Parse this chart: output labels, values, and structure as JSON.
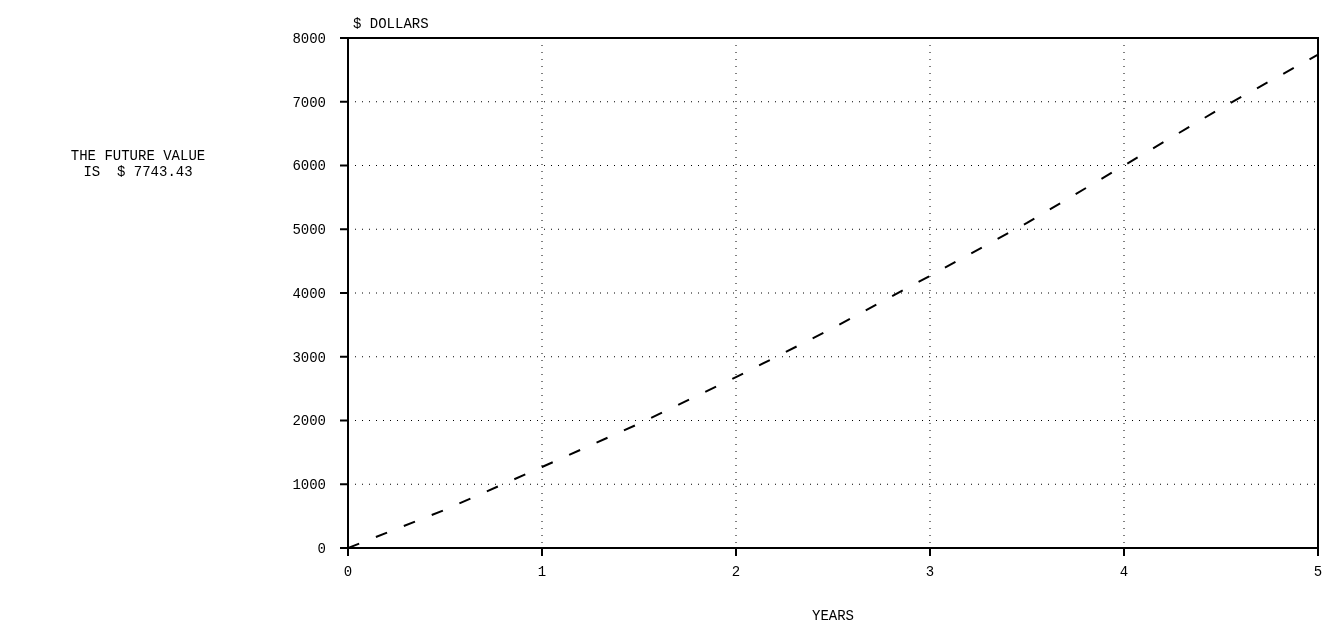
{
  "chart_data": {
    "type": "line",
    "xlabel": "YEARS",
    "ylabel": "$ DOLLARS",
    "annotations": [
      "THE FUTURE VALUE",
      "IS  $ 7743.43"
    ],
    "x": [
      0,
      0.5,
      1,
      1.5,
      2,
      2.5,
      3,
      3.5,
      4,
      4.5,
      5
    ],
    "series": [
      {
        "color": "#000000",
        "values": [
          0,
          600,
          1270,
          1950,
          2680,
          3450,
          4270,
          5100,
          6000,
          6900,
          7740
        ]
      }
    ],
    "xlim": [
      0,
      5
    ],
    "xticks": [
      0,
      1,
      2,
      3,
      4,
      5
    ],
    "ylim": [
      0,
      8000
    ],
    "yticks": [
      0,
      1000,
      2000,
      3000,
      4000,
      5000,
      6000,
      7000,
      8000
    ],
    "grid": true,
    "line_style": "dashed",
    "marker": "none"
  }
}
